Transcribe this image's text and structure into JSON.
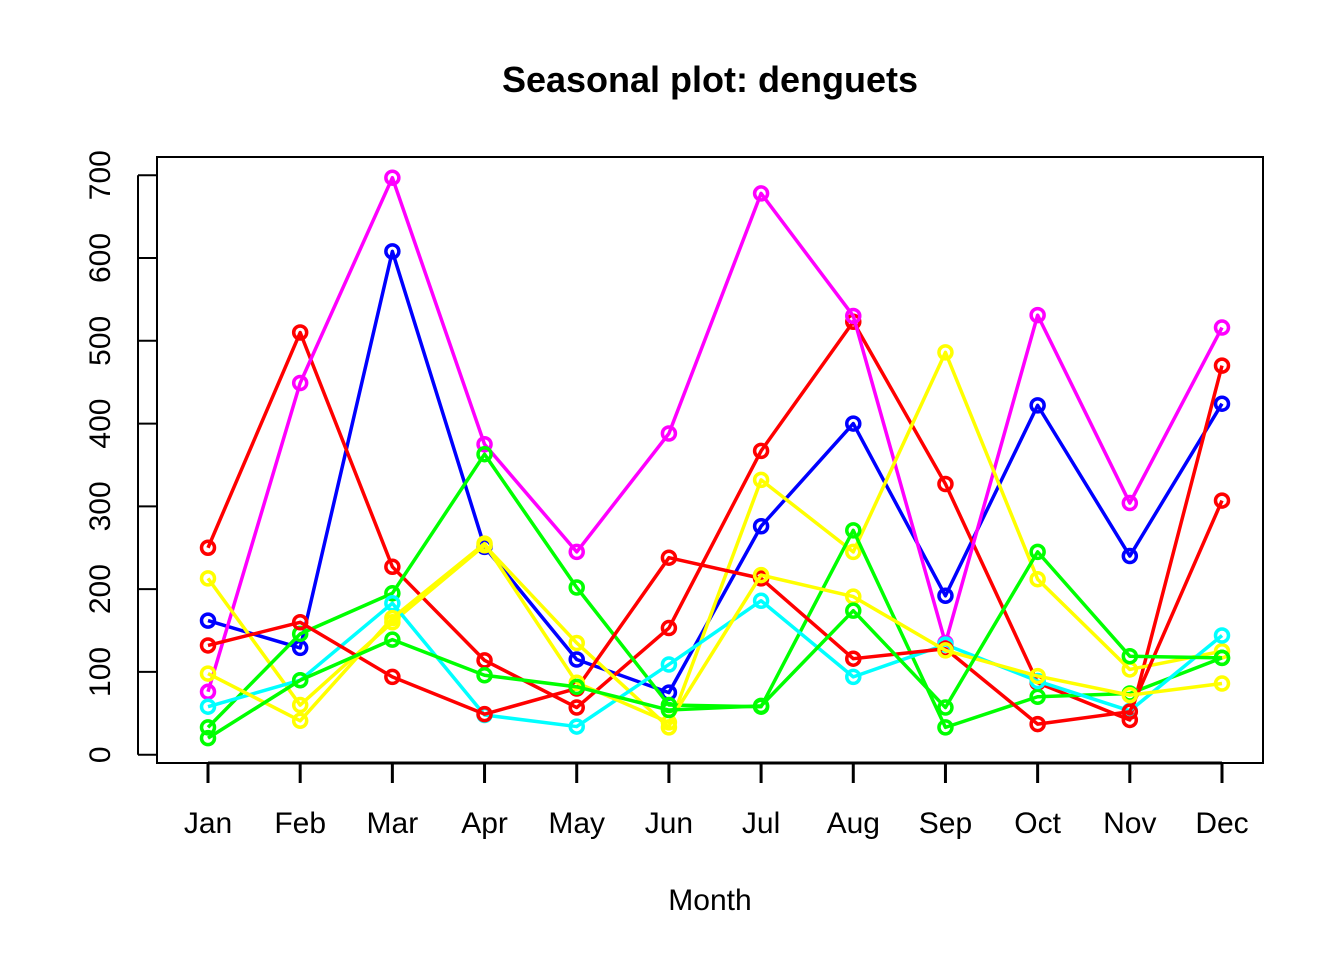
{
  "chart_data": {
    "type": "line",
    "title": "Seasonal plot: denguets",
    "xlabel": "Month",
    "ylabel": "",
    "categories": [
      "Jan",
      "Feb",
      "Mar",
      "Apr",
      "May",
      "Jun",
      "Jul",
      "Aug",
      "Sep",
      "Oct",
      "Nov",
      "Dec"
    ],
    "yticks": [
      0,
      100,
      200,
      300,
      400,
      500,
      600,
      700
    ],
    "ylim": [
      -10,
      722
    ],
    "grid": false,
    "legend": "none",
    "markers": "open-circle",
    "series": [
      {
        "color": "#0000ff",
        "values": [
          162,
          129,
          608,
          251,
          115,
          75,
          276,
          400,
          192,
          422,
          240,
          424
        ]
      },
      {
        "color": "#ff0000",
        "values": [
          250,
          510,
          227,
          114,
          57,
          153,
          367,
          523,
          327,
          87,
          42,
          470
        ]
      },
      {
        "color": "#ff00ff",
        "values": [
          76,
          449,
          697,
          375,
          245,
          388,
          678,
          530,
          135,
          531,
          304,
          516
        ]
      },
      {
        "color": "#ffff00",
        "values": [
          213,
          60,
          160,
          253,
          135,
          33,
          332,
          245,
          486,
          212,
          103,
          125
        ]
      },
      {
        "color": "#00ff00",
        "values": [
          33,
          146,
          195,
          363,
          202,
          60,
          58,
          271,
          33,
          70,
          74,
          117
        ]
      },
      {
        "color": "#00ffff",
        "values": [
          58,
          90,
          183,
          48,
          34,
          109,
          186,
          94,
          133,
          89,
          53,
          144
        ]
      },
      {
        "color": "#ff0000",
        "values": [
          132,
          160,
          94,
          49,
          80,
          238,
          213,
          116,
          128,
          37,
          52,
          307
        ]
      },
      {
        "color": "#ffff00",
        "values": [
          98,
          41,
          165,
          255,
          87,
          39,
          217,
          191,
          126,
          95,
          72,
          86
        ]
      },
      {
        "color": "#00ff00",
        "values": [
          20,
          90,
          139,
          96,
          82,
          54,
          59,
          174,
          57,
          245,
          119,
          117
        ]
      }
    ]
  }
}
